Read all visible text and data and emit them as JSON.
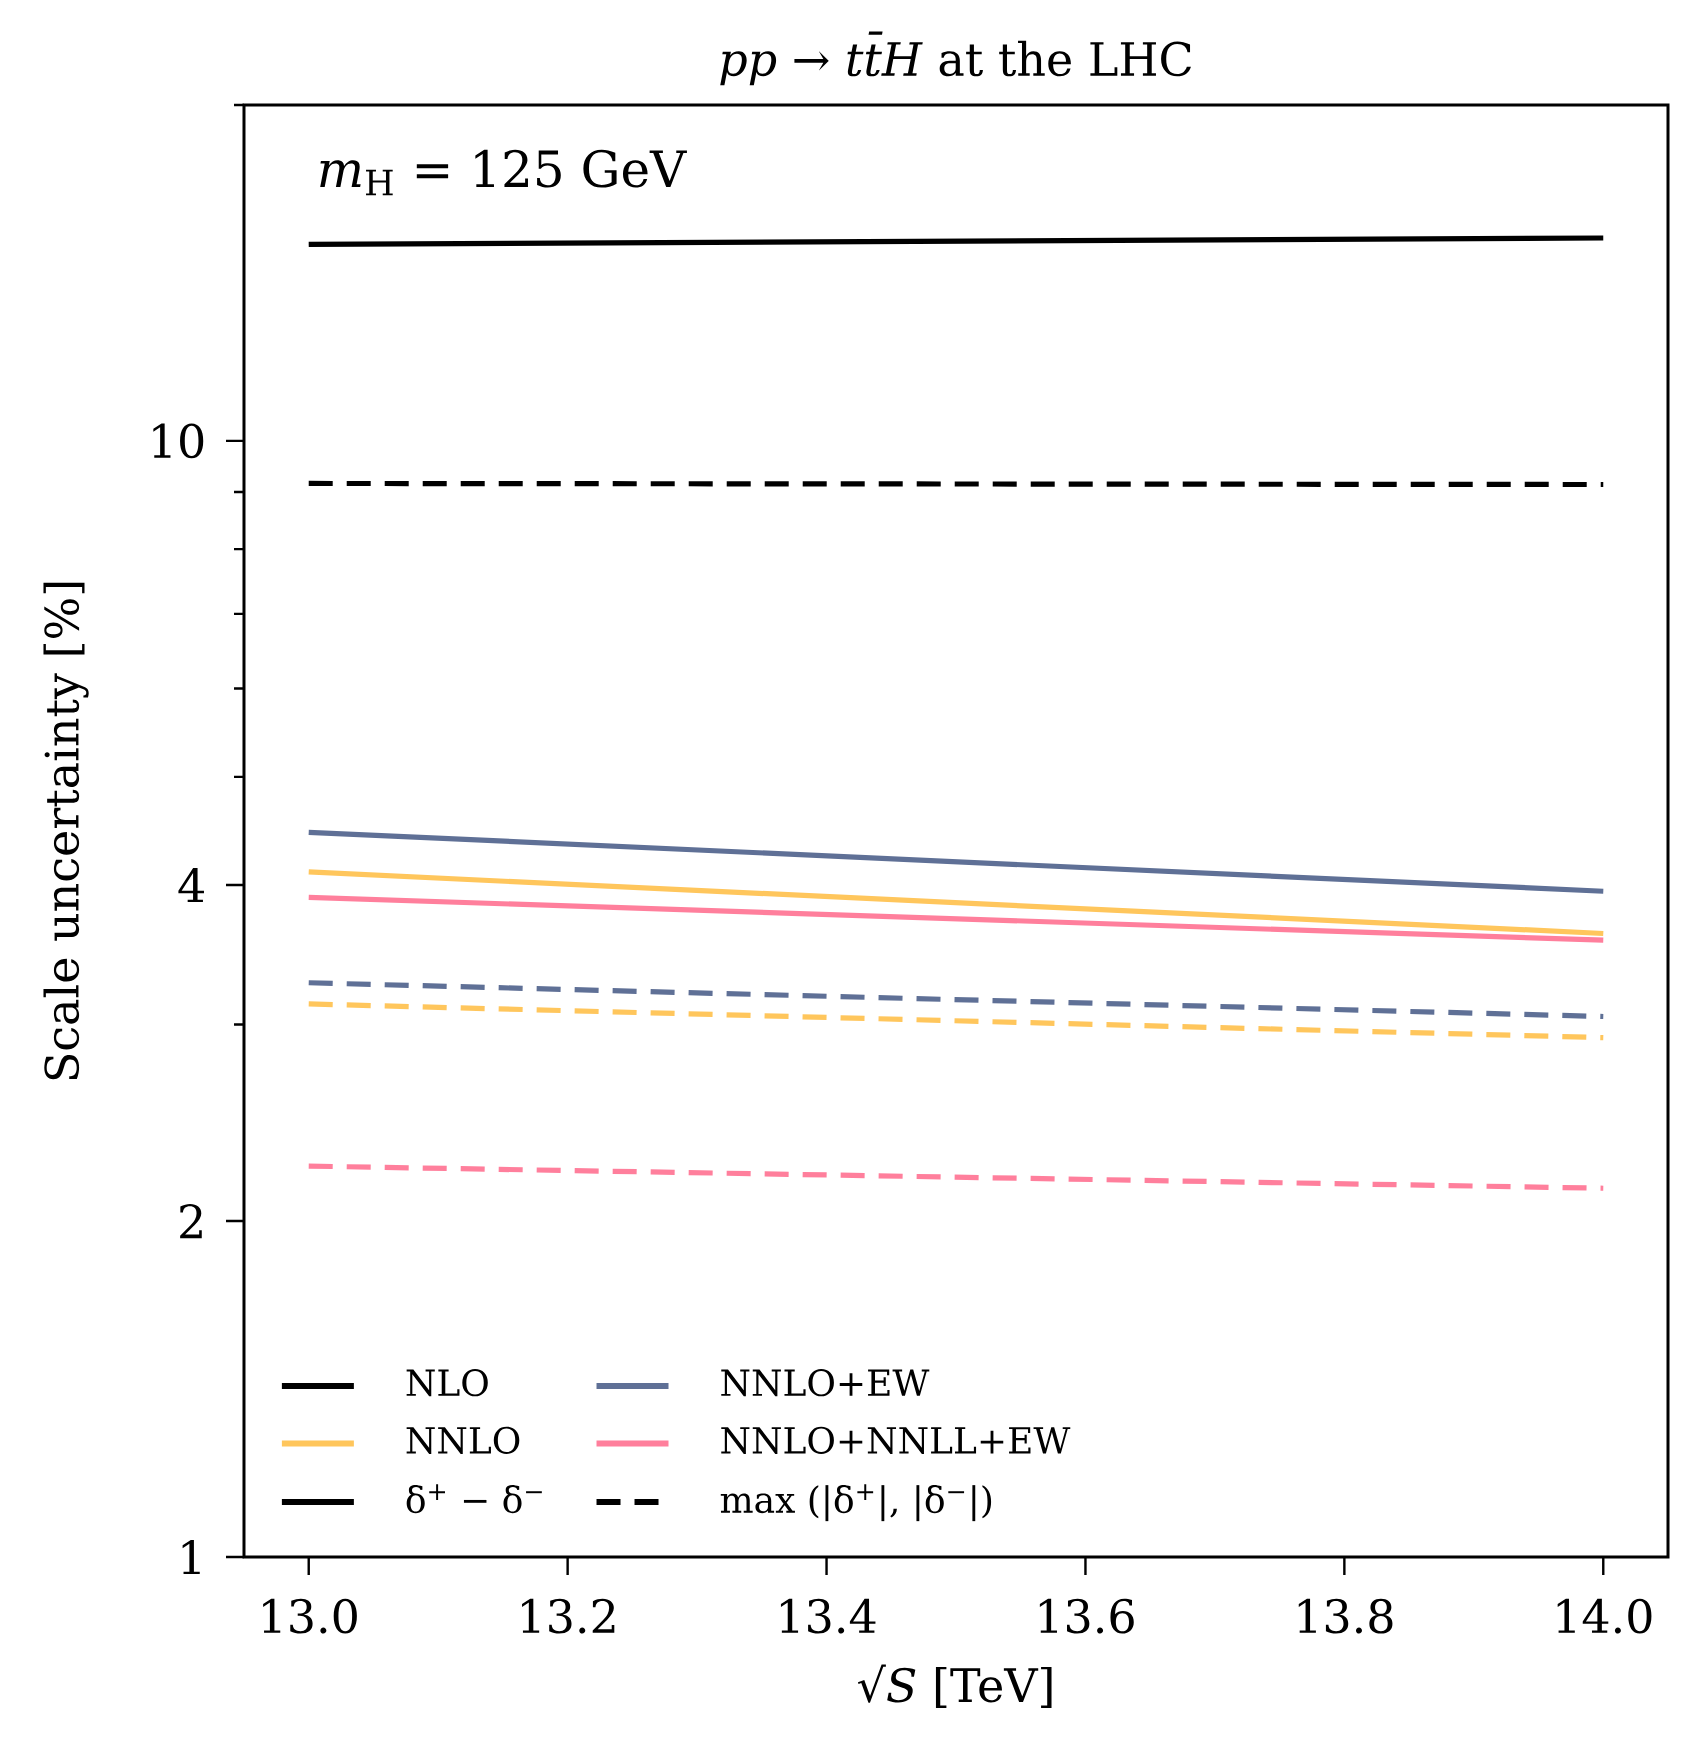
{
  "chart_data": {
    "type": "line",
    "title": "*pp* → *tt̄H* at the LHC",
    "xlabel": "√*S* [TeV]",
    "ylabel": "Scale uncertainty [%]",
    "annotations": [
      "*m*$_{H}$ = 125 GeV"
    ],
    "x": [
      13.0,
      14.0
    ],
    "xlim": [
      12.95,
      14.05
    ],
    "xticks": [
      {
        "value": 13.0,
        "label": "13.0"
      },
      {
        "value": 13.2,
        "label": "13.2"
      },
      {
        "value": 13.4,
        "label": "13.4"
      },
      {
        "value": 13.6,
        "label": "13.6"
      },
      {
        "value": 13.8,
        "label": "13.8"
      },
      {
        "value": 14.0,
        "label": "14.0"
      }
    ],
    "ylim": [
      1,
      20
    ],
    "log": "y",
    "yticks": [
      1,
      2,
      4,
      10,
      {
        "value": 3,
        "label": null
      },
      {
        "value": 5,
        "label": null
      },
      {
        "value": 6,
        "label": null
      },
      {
        "value": 7,
        "label": null
      },
      {
        "value": 8,
        "label": null
      },
      {
        "value": 9,
        "label": null
      },
      {
        "value": 20,
        "label": null
      }
    ],
    "legend": "bottom left",
    "series": [
      {
        "name": "NLO",
        "color": "#000000",
        "line_style": "solid",
        "values": [
          15.0,
          15.2
        ]
      },
      {
        "name": "NNLO",
        "color": "#ffc65c",
        "line_style": "solid",
        "values": [
          4.11,
          3.62
        ]
      },
      {
        "name": "δ$^{+}$ − δ$^{−}$",
        "color": "#000000",
        "line_style": "solid",
        "values": [
          null,
          null
        ]
      },
      {
        "name": "NNLO+EW",
        "color": "#5f7096",
        "line_style": "solid",
        "values": [
          4.46,
          3.95
        ]
      },
      {
        "name": "NNLO+NNLL+EW",
        "color": "#ff7f9c",
        "line_style": "solid",
        "values": [
          3.9,
          3.57
        ]
      },
      {
        "name": "max (|δ$^{+}$|, |δ$^{−}$|)",
        "color": "#000000",
        "line_style": "dashed",
        "values": [
          null,
          null
        ]
      },
      {
        "color": "#000000",
        "line_style": "dashed",
        "values": [
          9.16,
          9.14
        ]
      },
      {
        "color": "#ffc65c",
        "line_style": "dashed",
        "values": [
          3.13,
          2.92
        ]
      },
      {
        "color": "#5f7096",
        "line_style": "dashed",
        "values": [
          3.27,
          3.05
        ]
      },
      {
        "color": "#ff7f9c",
        "line_style": "dashed",
        "values": [
          2.24,
          2.14
        ]
      }
    ]
  }
}
